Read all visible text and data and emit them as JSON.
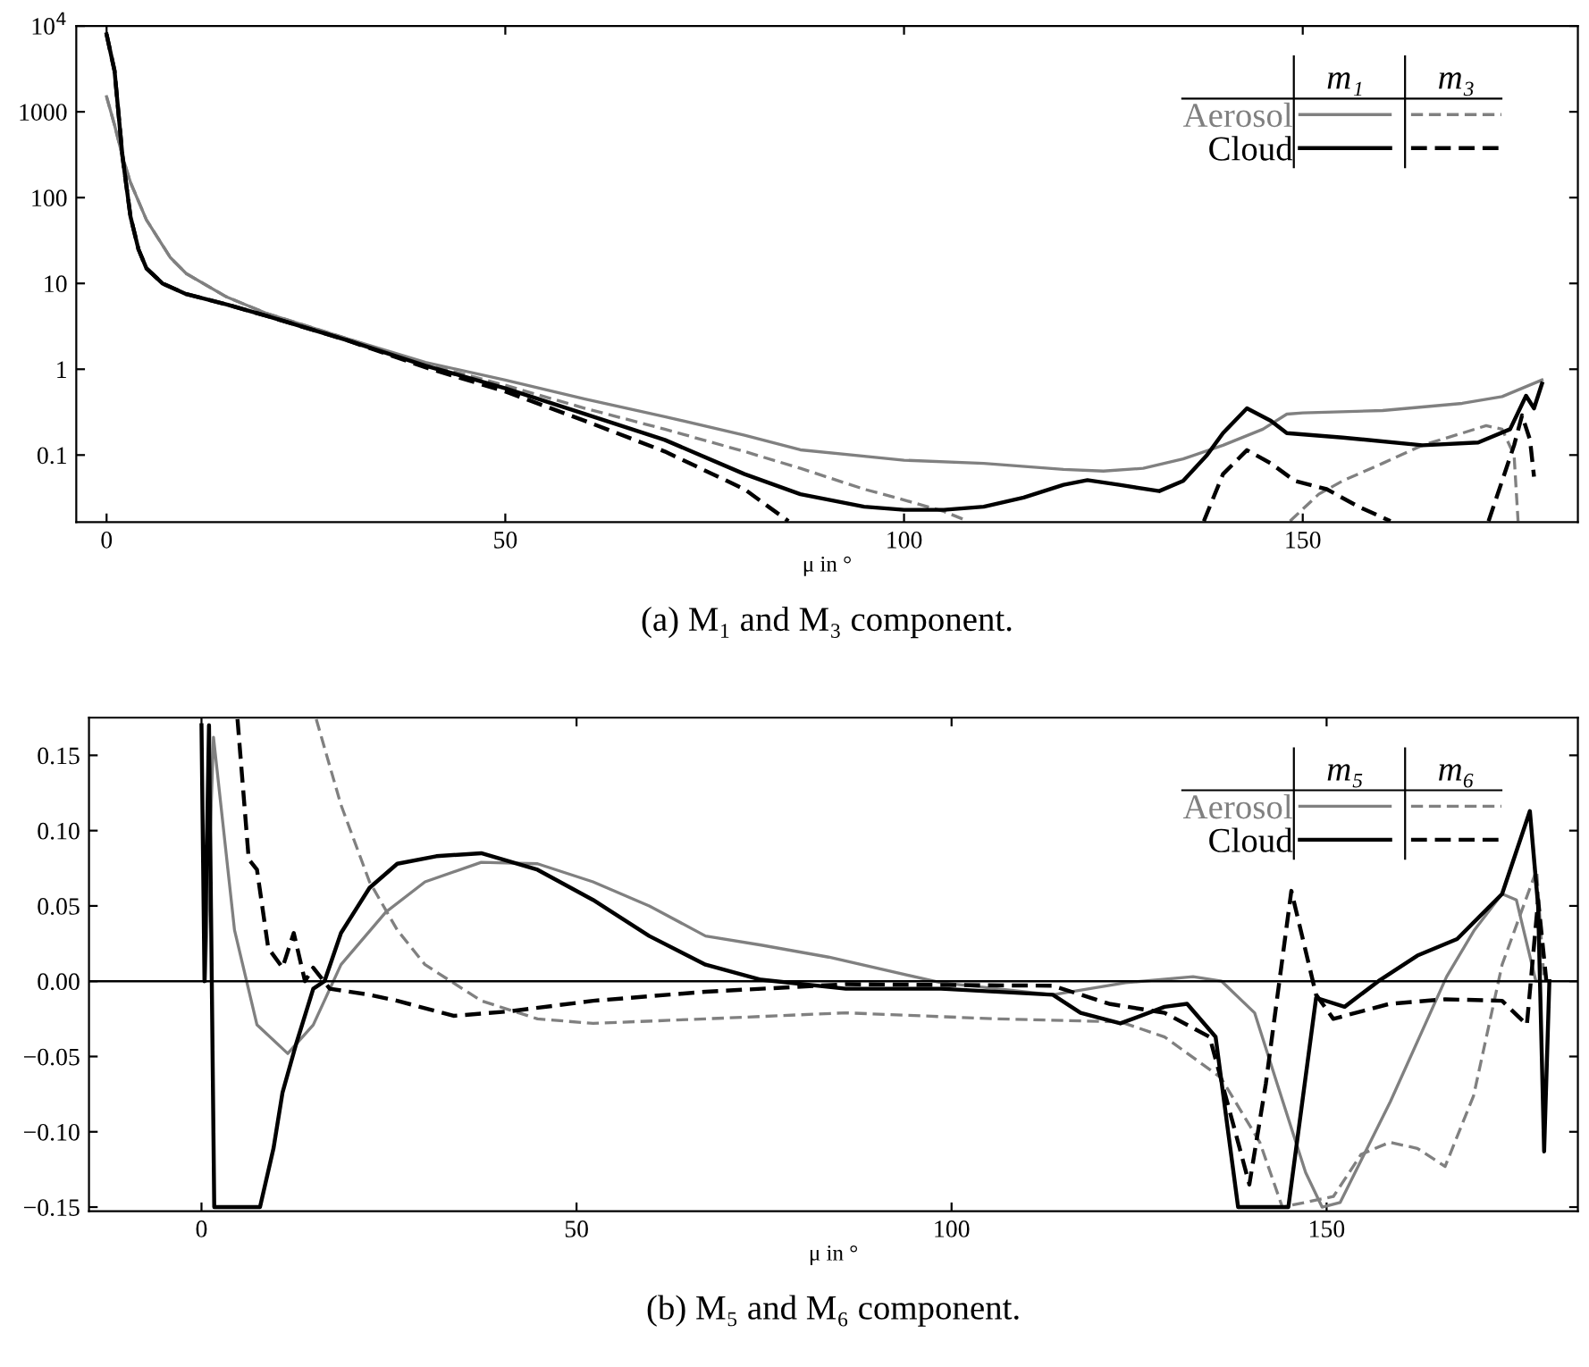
{
  "chart_data": [
    {
      "type": "line",
      "title": "(a) M₁ and M₃ component.",
      "xlabel": "μ in °",
      "log": "y",
      "xlim": [
        -3.8,
        184.5
      ],
      "ylim": [
        0.0165,
        10000
      ],
      "xticks": [
        0,
        50,
        100,
        150
      ],
      "yticks": [
        {
          "value": 10000,
          "label": "10$^{4}$"
        },
        1000,
        100,
        10,
        1,
        0.1
      ],
      "legend": "top right",
      "annotations": [
        "m₁",
        "m₃"
      ],
      "series": [
        {
          "name": "Aerosol",
          "color": "#808080",
          "line_style": "solid",
          "x": [
            0,
            1,
            2,
            3,
            5,
            8,
            10,
            15,
            20,
            30,
            40,
            50,
            60,
            70,
            80,
            87,
            100,
            110,
            120,
            125,
            130,
            135,
            140,
            145,
            148,
            150,
            160,
            170,
            175,
            180
          ],
          "values": [
            1500,
            700,
            300,
            150,
            55,
            20,
            13,
            7,
            4.5,
            2.3,
            1.2,
            0.75,
            0.45,
            0.28,
            0.17,
            0.115,
            0.087,
            0.08,
            0.068,
            0.065,
            0.07,
            0.09,
            0.13,
            0.2,
            0.3,
            0.31,
            0.33,
            0.4,
            0.48,
            0.75
          ]
        },
        {
          "color": "#808080",
          "line_style": "dashed",
          "x": [
            0,
            1,
            2,
            3,
            5,
            8,
            10,
            15,
            20,
            30,
            40,
            50,
            60,
            70,
            80,
            87,
            95,
            100,
            105,
            108,
            128,
            148.4,
            152,
            155,
            160,
            165,
            170,
            173,
            175,
            176.5,
            177
          ],
          "values": [
            1500,
            700,
            300,
            150,
            55,
            20,
            13,
            7,
            4.5,
            2.3,
            1.15,
            0.65,
            0.35,
            0.2,
            0.11,
            0.07,
            0.04,
            0.03,
            0.022,
            0.017,
            null,
            0.017,
            0.035,
            0.05,
            0.08,
            0.13,
            0.18,
            0.22,
            0.2,
            0.1,
            0.017
          ]
        },
        {
          "name": "Cloud",
          "color": "#000000",
          "line_style": "solid",
          "x": [
            0,
            1,
            2,
            3,
            4,
            5,
            7,
            10,
            15,
            20,
            30,
            40,
            50,
            60,
            70,
            80,
            87,
            95,
            100,
            105,
            110,
            115,
            120,
            123,
            127,
            132,
            135,
            138,
            140,
            143,
            146,
            148,
            155,
            165,
            172,
            176,
            178,
            179,
            180
          ],
          "values": [
            8000,
            3000,
            300,
            60,
            25,
            15,
            10,
            7.5,
            5.7,
            4.2,
            2.2,
            1.1,
            0.6,
            0.3,
            0.15,
            0.06,
            0.035,
            0.025,
            0.023,
            0.023,
            0.025,
            0.032,
            0.045,
            0.051,
            0.045,
            0.038,
            0.05,
            0.1,
            0.18,
            0.35,
            0.25,
            0.18,
            0.16,
            0.13,
            0.14,
            0.2,
            0.49,
            0.35,
            0.68
          ]
        },
        {
          "color": "#000000",
          "line_style": "dashed",
          "x": [
            0,
            1,
            2,
            3,
            4,
            5,
            7,
            10,
            15,
            20,
            30,
            40,
            50,
            60,
            70,
            80,
            83,
            85.5,
            110,
            137.6,
            140,
            143,
            146,
            149,
            153,
            157,
            161,
            167,
            173.3,
            175,
            176.5,
            177.5,
            178.5,
            179
          ],
          "values": [
            8000,
            3000,
            300,
            60,
            25,
            15,
            10,
            7.5,
            5.7,
            4.2,
            2.2,
            1.05,
            0.55,
            0.25,
            0.11,
            0.04,
            0.025,
            0.017,
            null,
            0.017,
            0.06,
            0.114,
            0.08,
            0.05,
            0.04,
            0.025,
            0.017,
            null,
            0.017,
            0.05,
            0.13,
            0.29,
            0.15,
            0.056
          ]
        }
      ]
    },
    {
      "type": "line",
      "title": "(b) M₅ and M₆ component.",
      "xlabel": "μ in °",
      "xlim": [
        -15,
        183.5
      ],
      "ylim": [
        -0.1527,
        0.175
      ],
      "xticks": [
        0,
        50,
        100,
        150
      ],
      "yticks": [
        0.15,
        {
          "value": 0.1,
          "label": "0.10"
        },
        0.05,
        {
          "value": 0,
          "label": "0.00"
        },
        {
          "value": -0.05,
          "label": "−0.05"
        },
        {
          "value": -0.1,
          "label": "−0.10"
        },
        {
          "value": -0.15,
          "label": "−0.15"
        }
      ],
      "legend": "top right",
      "annotations": [
        "m₅",
        "m₆"
      ],
      "ref_lines": [
        {
          "axis": "y",
          "value": 0,
          "color": "#000000"
        }
      ],
      "series": [
        {
          "name": "Aerosol",
          "color": "#808080",
          "line_style": "solid",
          "x": [
            0.5,
            1.6,
            4.4,
            7.4,
            11.5,
            14.9,
            18.6,
            24.6,
            29.8,
            37.3,
            44.8,
            52.2,
            59.7,
            67.2,
            74.6,
            83.6,
            98.6,
            113.5,
            123.2,
            132.2,
            136,
            140.4,
            143.4,
            147.2,
            149.4,
            151.8,
            158.5,
            166,
            169.7,
            173.4,
            175.3,
            177.9,
            179.4
          ],
          "values": [
            0,
            0.162,
            0.034,
            -0.029,
            -0.048,
            -0.029,
            0.011,
            0.046,
            0.066,
            0.079,
            0.078,
            0.066,
            0.05,
            0.03,
            0.024,
            0.016,
            -0.001,
            -0.009,
            -0.001,
            0.003,
            0,
            -0.021,
            -0.068,
            -0.127,
            -0.15,
            -0.147,
            -0.08,
            0.003,
            0.034,
            0.058,
            0.054,
            0,
            0
          ]
        },
        {
          "color": "#808080",
          "line_style": "dashed",
          "x": [
            15.3,
            18.6,
            22.4,
            26.1,
            29.8,
            37.3,
            44.8,
            52.2,
            67.2,
            85.9,
            106,
            122.5,
            128.4,
            135.9,
            141.1,
            144.1,
            150.9,
            154.6,
            158.4,
            162.1,
            165.8,
            169.6,
            173.4,
            178,
            179
          ],
          "values": [
            0.174,
            0.117,
            0.066,
            0.034,
            0.011,
            -0.013,
            -0.025,
            -0.028,
            -0.025,
            -0.021,
            -0.025,
            -0.027,
            -0.037,
            -0.064,
            -0.107,
            -0.15,
            -0.143,
            -0.115,
            -0.107,
            -0.111,
            -0.123,
            -0.076,
            0.011,
            0.074,
            0
          ]
        },
        {
          "name": "Cloud",
          "color": "#000000",
          "line_style": "solid",
          "x": [
            0,
            0.4,
            1.0,
            1.7,
            7.8,
            9.6,
            10.8,
            12.6,
            14.9,
            16.4,
            18.6,
            22.4,
            26.1,
            31.3,
            37.3,
            44.8,
            52.2,
            59.7,
            67.2,
            74.6,
            85.9,
            98.6,
            113.5,
            117.2,
            122.5,
            128.4,
            131.4,
            135.2,
            138.2,
            144.9,
            148.6,
            152.4,
            156.9,
            162.1,
            167.4,
            173.4,
            177.1,
            178.2,
            179,
            179.7
          ],
          "values": [
            0.17,
            0,
            0.17,
            -0.15,
            -0.15,
            -0.111,
            -0.074,
            -0.042,
            -0.005,
            0,
            0.032,
            0.062,
            0.078,
            0.083,
            0.085,
            0.074,
            0.054,
            0.03,
            0.011,
            0.001,
            -0.005,
            -0.005,
            -0.009,
            -0.021,
            -0.028,
            -0.017,
            -0.015,
            -0.037,
            -0.15,
            -0.15,
            -0.011,
            -0.017,
            0,
            0.017,
            0.028,
            0.058,
            0.113,
            0.05,
            -0.113,
            0
          ]
        },
        {
          "color": "#000000",
          "line_style": "dashed",
          "x": [
            4.8,
            6.3,
            7.4,
            8.9,
            10.8,
            12.3,
            13.8,
            14.9,
            17.1,
            22.4,
            26.1,
            33.6,
            41.1,
            52.2,
            67.2,
            85.9,
            113.5,
            121,
            128.4,
            134.4,
            138.2,
            139.7,
            141.9,
            145.3,
            148.6,
            150.9,
            158.4,
            165.8,
            173.4,
            176.7,
            178.2,
            179.3
          ],
          "values": [
            0.174,
            0.081,
            0.074,
            0.022,
            0.009,
            0.032,
            0,
            0.009,
            -0.005,
            -0.009,
            -0.013,
            -0.023,
            -0.02,
            -0.013,
            -0.007,
            -0.002,
            -0.003,
            -0.015,
            -0.021,
            -0.037,
            -0.107,
            -0.135,
            -0.068,
            0.06,
            -0.009,
            -0.025,
            -0.015,
            -0.012,
            -0.013,
            -0.029,
            0.054,
            0
          ]
        }
      ]
    }
  ]
}
